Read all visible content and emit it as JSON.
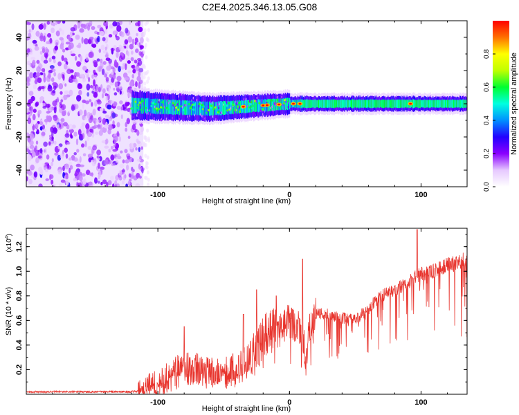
{
  "title": "C2E4.2025.346.13.05.G08",
  "chart_data": [
    {
      "type": "heatmap",
      "name": "spectrogram",
      "xlabel": "Height of straight line (km)",
      "ylabel": "Frequency (Hz)",
      "xlim": [
        -200,
        135
      ],
      "ylim": [
        -50,
        50
      ],
      "xticks": [
        -100,
        0,
        100
      ],
      "xtick_labels": [
        "-100",
        "0",
        "100"
      ],
      "yticks": [
        -40,
        -20,
        0,
        20,
        40
      ],
      "ytick_labels": [
        "-40",
        "-20",
        "0",
        "20",
        "40"
      ],
      "noise_region_x": [
        -200,
        -111
      ],
      "signal_start_x": -120,
      "signal_center_frequency_trend": {
        "x": [
          -120,
          -60,
          0,
          135
        ],
        "y": [
          -1,
          -3,
          0,
          0
        ]
      },
      "peaks_x": [
        -35,
        -20,
        -17,
        -8,
        3,
        8,
        92
      ],
      "colorbar": {
        "label": "Normalized spectral amplitude",
        "range": [
          0.0,
          1.0
        ],
        "ticks": [
          0.0,
          0.2,
          0.4,
          0.6,
          0.8
        ],
        "tick_labels": [
          "0.0",
          "0.2",
          "0.4",
          "0.6",
          "0.8"
        ],
        "colors": [
          "#ffffff",
          "#e6c8ff",
          "#8a00ff",
          "#2200ff",
          "#0090ff",
          "#00ffe0",
          "#00ff30",
          "#c0ff00",
          "#ffff00",
          "#ff7000",
          "#ff0000"
        ]
      }
    },
    {
      "type": "line",
      "name": "snr",
      "xlabel": "Height of straight line (km)",
      "ylabel": "SNR (10 * v/v)",
      "scale_label_base": "(x10",
      "scale_label_exp": "4",
      "scale_label_close": ")",
      "xlim": [
        -200,
        135
      ],
      "ylim": [
        0,
        1.35
      ],
      "xticks": [
        -100,
        0,
        100
      ],
      "xtick_labels": [
        "-100",
        "0",
        "100"
      ],
      "yticks": [
        0.2,
        0.4,
        0.6,
        0.8,
        1.0,
        1.2
      ],
      "ytick_labels": [
        "0.2",
        "0.4",
        "0.6",
        "0.8",
        "1.0",
        "1.2"
      ],
      "line_color": "#e8352e",
      "trend_x": [
        -200,
        -120,
        -110,
        -100,
        -90,
        -80,
        -70,
        -60,
        -50,
        -40,
        -30,
        -20,
        -15,
        -10,
        -5,
        0,
        5,
        10,
        12,
        15,
        20,
        30,
        40,
        50,
        60,
        70,
        80,
        90,
        95,
        100,
        110,
        120,
        135
      ],
      "trend_y": [
        0.02,
        0.02,
        0.03,
        0.1,
        0.14,
        0.22,
        0.2,
        0.18,
        0.18,
        0.2,
        0.3,
        0.45,
        0.55,
        0.5,
        0.55,
        0.6,
        0.55,
        0.5,
        0.3,
        0.55,
        0.65,
        0.65,
        0.62,
        0.6,
        0.7,
        0.8,
        0.85,
        0.9,
        0.95,
        0.98,
        1.0,
        1.05,
        1.1
      ],
      "spikes": [
        {
          "x": -80,
          "y": 0.55
        },
        {
          "x": -35,
          "y": 0.65
        },
        {
          "x": -25,
          "y": 0.85
        },
        {
          "x": -10,
          "y": 0.8
        },
        {
          "x": 10,
          "y": 1.1
        },
        {
          "x": 97,
          "y": 1.34
        }
      ]
    }
  ]
}
